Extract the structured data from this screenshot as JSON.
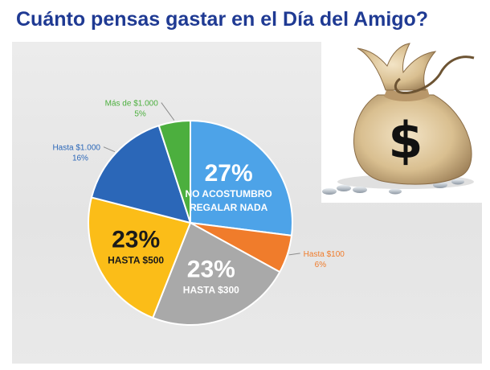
{
  "title": "Cuánto pensas gastar en el Día del Amigo?",
  "chart_data": {
    "type": "pie",
    "title": "Cuánto pensas gastar en el Día del Amigo?",
    "slices": [
      {
        "label": "No acostumbro regalar nada",
        "value": 27,
        "value_text": "27%",
        "label_lines": [
          "No acostumbro",
          "regalar nada"
        ],
        "color": "#4da3e8",
        "text_color": "#ffffff",
        "label_position": "inside"
      },
      {
        "label": "Hasta $100",
        "value": 6,
        "value_text": "6%",
        "label_lines": [
          "Hasta $100"
        ],
        "color": "#f07c2b",
        "text_color": "#f07c2b",
        "label_position": "outside-right"
      },
      {
        "label": "Hasta $300",
        "value": 23,
        "value_text": "23%",
        "label_lines": [
          "Hasta $300"
        ],
        "color": "#a9a9a9",
        "text_color": "#ffffff",
        "label_position": "inside"
      },
      {
        "label": "Hasta $500",
        "value": 23,
        "value_text": "23%",
        "label_lines": [
          "Hasta $500"
        ],
        "color": "#fbbd18",
        "text_color": "#1a1a1a",
        "label_position": "inside"
      },
      {
        "label": "Hasta $1.000",
        "value": 16,
        "value_text": "16%",
        "label_lines": [
          "Hasta $1.000"
        ],
        "color": "#2b67b8",
        "text_color": "#2b67b8",
        "label_position": "outside-left"
      },
      {
        "label": "Más de $1.000",
        "value": 5,
        "value_text": "5%",
        "label_lines": [
          "Más de $1.000"
        ],
        "color": "#4caf3e",
        "text_color": "#4caf3e",
        "label_position": "outside-top"
      }
    ]
  },
  "icons": {
    "money_bag": "money-bag-dollar-icon"
  }
}
